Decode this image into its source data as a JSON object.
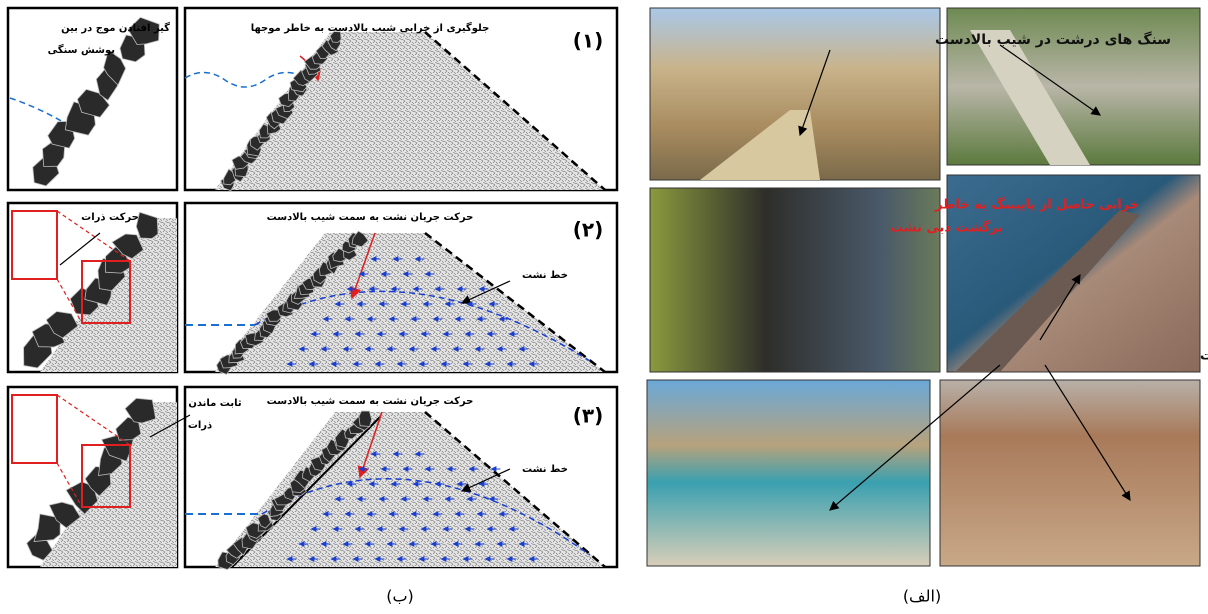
{
  "panel_b": {
    "caption": "(ب)",
    "rows": [
      {
        "detail": [
          "گیر افتادن موج در بین",
          "پوشش سنگی"
        ],
        "number": "(۱)",
        "labels": [
          "جلوگیری از خرابی شیب بالادست به خاطر موجها"
        ]
      },
      {
        "detail": [
          "حرکت ذرات"
        ],
        "number": "(۲)",
        "labels": [
          "حرکت جریان نشت به سمت شیب بالادست",
          "خط نشت"
        ]
      },
      {
        "detail": [
          "ثابت ماندن",
          "ذرات"
        ],
        "number": "(۳)",
        "labels": [
          "حرکت جریان نشت به سمت شیب بالادست",
          "خط نشت"
        ]
      }
    ]
  },
  "panel_a": {
    "caption": "(الف)",
    "photos": [
      {
        "label": [
          "سنگ های درشت در شیب بالادست"
        ]
      },
      {
        "label": [
          "خرابی حاصل از پایپینگ به خاطر",
          "برگشت دبی نشت"
        ]
      },
      {
        "label": [
          "سنگ های درشت در شیب بالادست"
        ]
      }
    ]
  }
}
